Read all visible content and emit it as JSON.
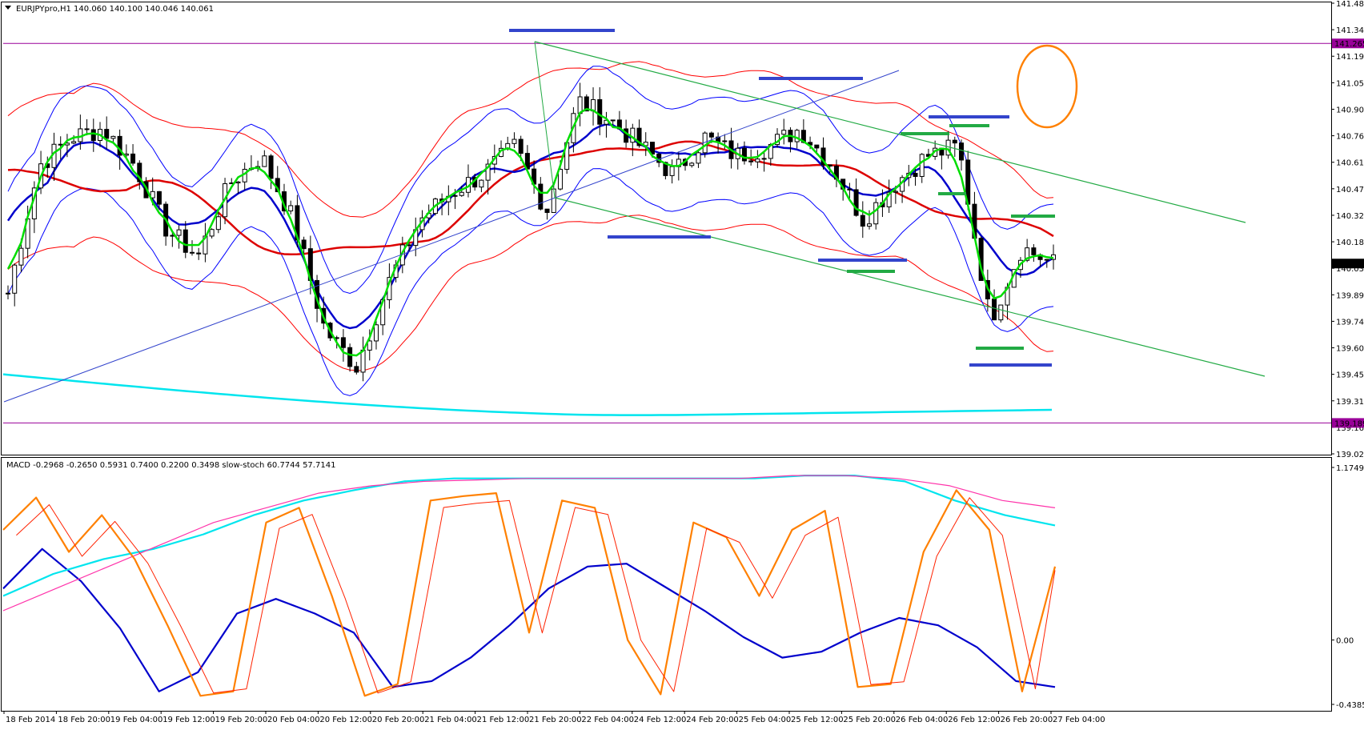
{
  "chart_data": [
    {
      "type": "candlestick",
      "panel": "price",
      "header": "EURJPYpro,H1  140.060 140.100 140.046 140.061",
      "y_ticks": [
        "141.485",
        "141.340",
        "141.195",
        "141.050",
        "140.905",
        "140.760",
        "140.615",
        "140.470",
        "140.325",
        "140.180",
        "140.035",
        "139.890",
        "139.745",
        "139.600",
        "139.455",
        "139.310",
        "139.165",
        "139.020"
      ],
      "ylim": [
        139.02,
        141.485
      ],
      "hlines": [
        {
          "value": 141.265,
          "label": "141.265",
          "color": "#990099"
        },
        {
          "value": 139.189,
          "label": "139.189",
          "color": "#990099"
        }
      ],
      "current_price": {
        "value": 140.061,
        "label": "140.061"
      },
      "sample_closes": [
        139.9,
        140.6,
        140.75,
        140.8,
        140.6,
        140.25,
        140.1,
        140.5,
        140.65,
        140.3,
        139.7,
        139.5,
        139.95,
        140.3,
        140.45,
        140.55,
        140.7,
        140.35,
        140.95,
        140.85,
        140.7,
        140.55,
        140.75,
        140.65,
        140.7,
        140.8,
        140.6,
        140.3,
        140.5,
        140.65,
        140.7,
        139.75,
        140.15,
        140.06
      ],
      "colors": {
        "up": "#ffffff",
        "down": "#000000",
        "bollinger_a": "#0000ff",
        "bollinger_b": "#ff0000",
        "ema_fast": "#00dd00",
        "ema_mid": "#0000cc",
        "ema_slow": "#dd0000",
        "ema_long": "#00e5ee",
        "channel": "#22aa44",
        "level_blue": "#3344cc",
        "level_green": "#22aa44",
        "highlight": "#ff8000"
      }
    },
    {
      "type": "line",
      "panel": "oscillator",
      "header": "MACD -0.2968 -0.2650 0.5931 0.7400 0.2200 0.3498  slow-stoch 60.7744 57.7141",
      "y_ticks": [
        "1.1749",
        "0.00",
        "-0.4385"
      ],
      "ylim": [
        -0.4385,
        1.1749
      ],
      "series": [
        {
          "values": [
            0.35,
            0.62,
            0.4,
            0.08,
            -0.35,
            -0.22,
            0.18,
            0.28,
            0.18,
            0.05,
            -0.32,
            -0.28,
            -0.12,
            0.1,
            0.35,
            0.5,
            0.52,
            0.36,
            0.2,
            0.02,
            -0.12,
            -0.08,
            0.05,
            0.15,
            0.1,
            -0.05,
            -0.28,
            -0.32
          ],
          "color": "#0000cc"
        },
        {
          "values": [
            0.3,
            0.45,
            0.55,
            0.62,
            0.72,
            0.85,
            0.95,
            1.02,
            1.08,
            1.1,
            1.1,
            1.1,
            1.1,
            1.1,
            1.1,
            1.1,
            1.12,
            1.12,
            1.08,
            0.95,
            0.85,
            0.78
          ],
          "color": "#00e5ee"
        },
        {
          "values": [
            0.2,
            0.35,
            0.5,
            0.65,
            0.8,
            0.9,
            1.0,
            1.05,
            1.08,
            1.09,
            1.1,
            1.1,
            1.1,
            1.1,
            1.1,
            1.12,
            1.12,
            1.1,
            1.05,
            0.95,
            0.9
          ],
          "color": "#ff33aa"
        },
        {
          "values": [
            0.75,
            0.97,
            0.6,
            0.85,
            0.55,
            0.1,
            -0.38,
            -0.35,
            0.8,
            0.9,
            0.3,
            -0.38,
            -0.3,
            0.95,
            0.98,
            1.0,
            0.05,
            0.95,
            0.9,
            0.0,
            -0.37,
            0.8,
            0.7,
            0.3,
            0.75,
            0.88,
            -0.32,
            -0.3,
            0.6,
            1.02,
            0.75,
            -0.35,
            0.5
          ],
          "color": "#ff8000"
        }
      ]
    }
  ],
  "x_ticks": [
    "18 Feb 2014",
    "18 Feb 20:00",
    "19 Feb 04:00",
    "19 Feb 12:00",
    "19 Feb 20:00",
    "20 Feb 04:00",
    "20 Feb 12:00",
    "20 Feb 20:00",
    "21 Feb 04:00",
    "21 Feb 12:00",
    "21 Feb 20:00",
    "22 Feb 04:00",
    "24 Feb 12:00",
    "24 Feb 20:00",
    "25 Feb 04:00",
    "25 Feb 12:00",
    "25 Feb 20:00",
    "26 Feb 04:00",
    "26 Feb 12:00",
    "26 Feb 20:00",
    "27 Feb 04:00"
  ]
}
